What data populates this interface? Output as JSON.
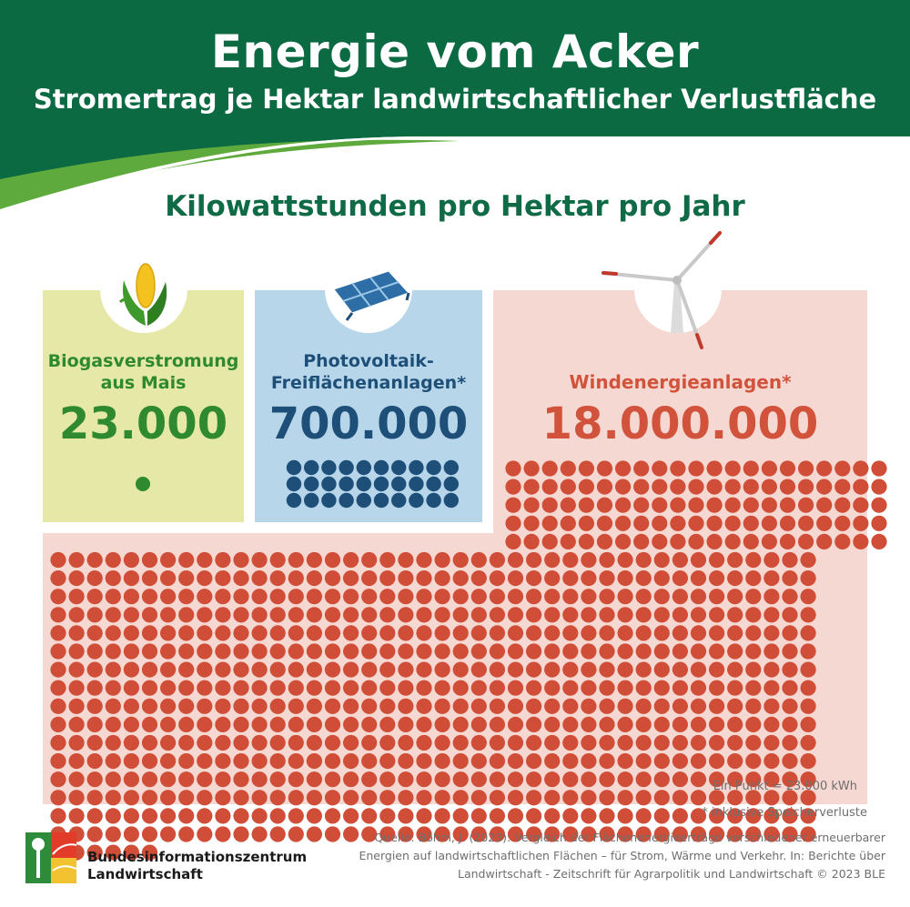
{
  "header": {
    "title": "Energie vom Acker",
    "subtitle": "Stromertrag je Hektar landwirtschaftlicher Verlustfläche"
  },
  "section_title": "Kilowattstunden pro Hektar pro Jahr",
  "panels": {
    "biogas": {
      "label_line1": "Biogasverstromung",
      "label_line2": "aus Mais",
      "value": "23.000",
      "dots": 1,
      "icon": "corn-icon"
    },
    "pv": {
      "label_line1": "Photovoltaik-",
      "label_line2": "Freiflächenanlagen*",
      "value": "700.000",
      "dots": 30,
      "icon": "solar-panel-icon"
    },
    "wind": {
      "label": "Windenergieanlagen*",
      "value": "18.000.000",
      "dots": 783,
      "icon": "wind-turbine-icon"
    }
  },
  "point_legend": "Ein Punkt = 23.000 kWh",
  "footnote": "* inklusive Speicherverluste",
  "footer": {
    "org_line1": "Bundesinformationszentrum",
    "org_line2": "Landwirtschaft",
    "source_line1": "Quelle: Böhm, J. (2023): Vergleich der Flächenenergieerträge verschiedener erneuerbarer",
    "source_line2": "Energien auf landwirtschaftlichen Flächen – für Strom, Wärme und Verkehr. In: Berichte über",
    "source_line3": "Landwirtschaft - Zeitschrift für Agrarpolitik und Landwirtschaft © 2023 BLE"
  },
  "colors": {
    "header_green": "#0b6a42",
    "biogas": "#2f8a2f",
    "pv": "#1d4f78",
    "wind": "#d2533c",
    "wind_dot": "#d04e37"
  }
}
